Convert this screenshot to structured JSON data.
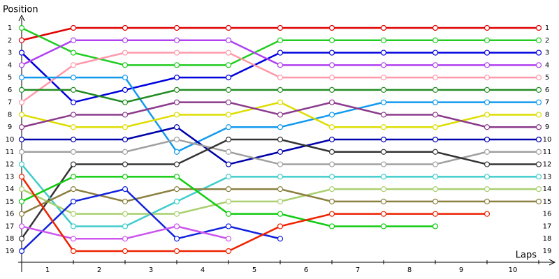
{
  "chart_data": {
    "type": "line",
    "y_label": "Position",
    "x_label": "Laps",
    "x": [
      0,
      1,
      2,
      3,
      4,
      5,
      6,
      7,
      8,
      9,
      10
    ],
    "xlim": [
      0,
      10
    ],
    "xticks": [
      {
        "value": 0.5,
        "label": "1"
      },
      {
        "value": 1.5,
        "label": "2"
      },
      {
        "value": 2.5,
        "label": "3"
      },
      {
        "value": 3.5,
        "label": "4"
      },
      {
        "value": 4.5,
        "label": "5"
      },
      {
        "value": 5.5,
        "label": "6"
      },
      {
        "value": 6.5,
        "label": "7"
      },
      {
        "value": 7.5,
        "label": "8"
      },
      {
        "value": 8.5,
        "label": "9"
      },
      {
        "value": 9.5,
        "label": "10"
      }
    ],
    "ylim": [
      1,
      19
    ],
    "y_inverted": true,
    "yticks": [
      1,
      2,
      3,
      4,
      5,
      6,
      7,
      8,
      9,
      10,
      11,
      12,
      13,
      14,
      15,
      16,
      17,
      18,
      19
    ],
    "series": [
      {
        "color": "#e00000",
        "values": [
          2,
          1,
          1,
          1,
          1,
          1,
          1,
          1,
          1,
          1,
          1
        ]
      },
      {
        "color": "#22cc22",
        "values": [
          1,
          3,
          4,
          4,
          4,
          2,
          2,
          2,
          2,
          2,
          2
        ]
      },
      {
        "color": "#0000dd",
        "values": [
          3,
          7,
          6,
          5,
          5,
          3,
          3,
          3,
          3,
          3,
          3
        ]
      },
      {
        "color": "#b040f0",
        "values": [
          4,
          2,
          2,
          2,
          2,
          4,
          4,
          4,
          4,
          4,
          4
        ]
      },
      {
        "color": "#ff99aa",
        "values": [
          7,
          4,
          3,
          3,
          3,
          5,
          5,
          5,
          5,
          5,
          5
        ]
      },
      {
        "color": "#1199ee",
        "values": [
          5,
          5,
          5,
          11,
          9,
          9,
          8,
          7,
          7,
          7,
          7
        ]
      },
      {
        "color": "#228b22",
        "values": [
          6,
          6,
          7,
          6,
          6,
          6,
          6,
          6,
          6,
          6,
          6
        ]
      },
      {
        "color": "#dddd00",
        "values": [
          8,
          9,
          9,
          8,
          8,
          7,
          9,
          9,
          9,
          8,
          8
        ]
      },
      {
        "color": "#8b3a8b",
        "values": [
          9,
          8,
          8,
          7,
          7,
          8,
          7,
          8,
          8,
          9,
          9
        ]
      },
      {
        "color": "#0000aa",
        "values": [
          10,
          10,
          10,
          9,
          12,
          11,
          10,
          10,
          10,
          10,
          10
        ]
      },
      {
        "color": "#a0a0a0",
        "values": [
          11,
          11,
          11,
          10,
          11,
          12,
          12,
          12,
          12,
          11,
          11
        ]
      },
      {
        "color": "#333333",
        "values": [
          18,
          12,
          12,
          12,
          10,
          10,
          11,
          11,
          11,
          12,
          12
        ]
      },
      {
        "color": "#40cccc",
        "values": [
          12,
          17,
          17,
          15,
          13,
          13,
          13,
          13,
          13,
          13,
          13
        ]
      },
      {
        "color": "#aad070",
        "values": [
          14,
          16,
          16,
          16,
          15,
          15,
          14,
          14,
          14,
          14,
          14
        ]
      },
      {
        "color": "#8b8040",
        "values": [
          16,
          14,
          15,
          14,
          14,
          14,
          15,
          15,
          15,
          15,
          15
        ]
      },
      {
        "color": "#11cc11",
        "values": [
          15,
          13,
          13,
          13,
          16,
          16,
          17,
          17,
          17,
          null,
          null
        ]
      },
      {
        "color": "#1122dd",
        "values": [
          19,
          15,
          14,
          18,
          17,
          18,
          null,
          null,
          null,
          null,
          null
        ]
      },
      {
        "color": "#cc55ee",
        "values": [
          17,
          18,
          18,
          17,
          18,
          null,
          null,
          null,
          null,
          null,
          null
        ]
      },
      {
        "color": "#ee2200",
        "values": [
          13,
          19,
          19,
          19,
          19,
          17,
          16,
          16,
          16,
          16,
          null
        ]
      }
    ]
  }
}
